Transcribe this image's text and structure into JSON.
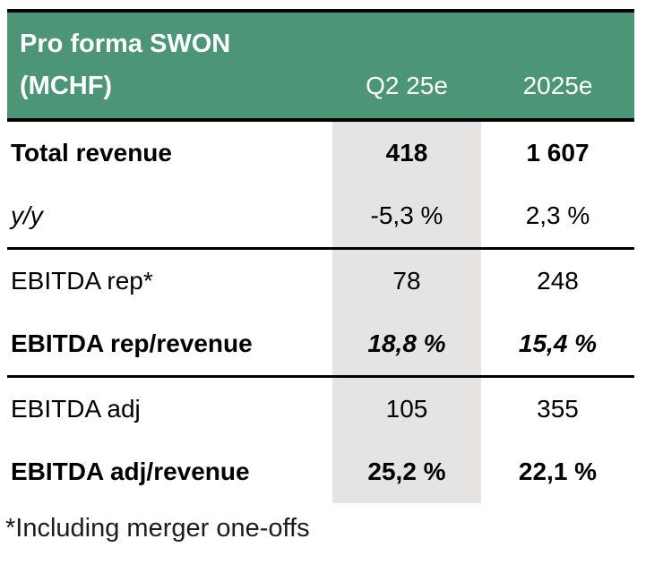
{
  "table": {
    "title": "Pro forma SWON",
    "unit": "(MCHF)",
    "columns": [
      "Q2 25e",
      "2025e"
    ],
    "rows": [
      {
        "label": "Total revenue",
        "values": [
          "418",
          "1 607"
        ]
      },
      {
        "label": "y/y",
        "values": [
          "-5,3 %",
          "2,3 %"
        ]
      },
      {
        "label": "EBITDA rep*",
        "values": [
          "78",
          "248"
        ]
      },
      {
        "label": "EBITDA rep/revenue",
        "values": [
          "18,8 %",
          "15,4 %"
        ]
      },
      {
        "label": "EBITDA adj",
        "values": [
          "105",
          "355"
        ]
      },
      {
        "label": "EBITDA adj/revenue",
        "values": [
          "25,2 %",
          "22,1 %"
        ]
      }
    ],
    "footnote": "*Including merger one-offs",
    "colors": {
      "header_background": "#4C9577",
      "header_text": "#FFFFFF",
      "highlight_column": "#E6E4E2",
      "body_text": "#000000",
      "border": "#000000"
    }
  },
  "chart_data": {
    "type": "table",
    "title": "Pro forma SWON (MCHF)",
    "columns": [
      "Q2 25e",
      "2025e"
    ],
    "row_labels": [
      "Total revenue",
      "y/y",
      "EBITDA rep*",
      "EBITDA rep/revenue",
      "EBITDA adj",
      "EBITDA adj/revenue"
    ],
    "series": [
      {
        "name": "Q2 25e",
        "values": [
          418,
          "-5,3 %",
          78,
          "18,8 %",
          105,
          "25,2 %"
        ]
      },
      {
        "name": "2025e",
        "values": [
          1607,
          "2,3 %",
          248,
          "15,4 %",
          355,
          "22,1 %"
        ]
      }
    ],
    "highlighted_column": "Q2 25e",
    "footnote": "*Including merger one-offs",
    "layout_hints": {
      "header_fill": "#4C9577",
      "column_highlight": "#E6E4E2",
      "grid": "horizontal separators only"
    }
  }
}
